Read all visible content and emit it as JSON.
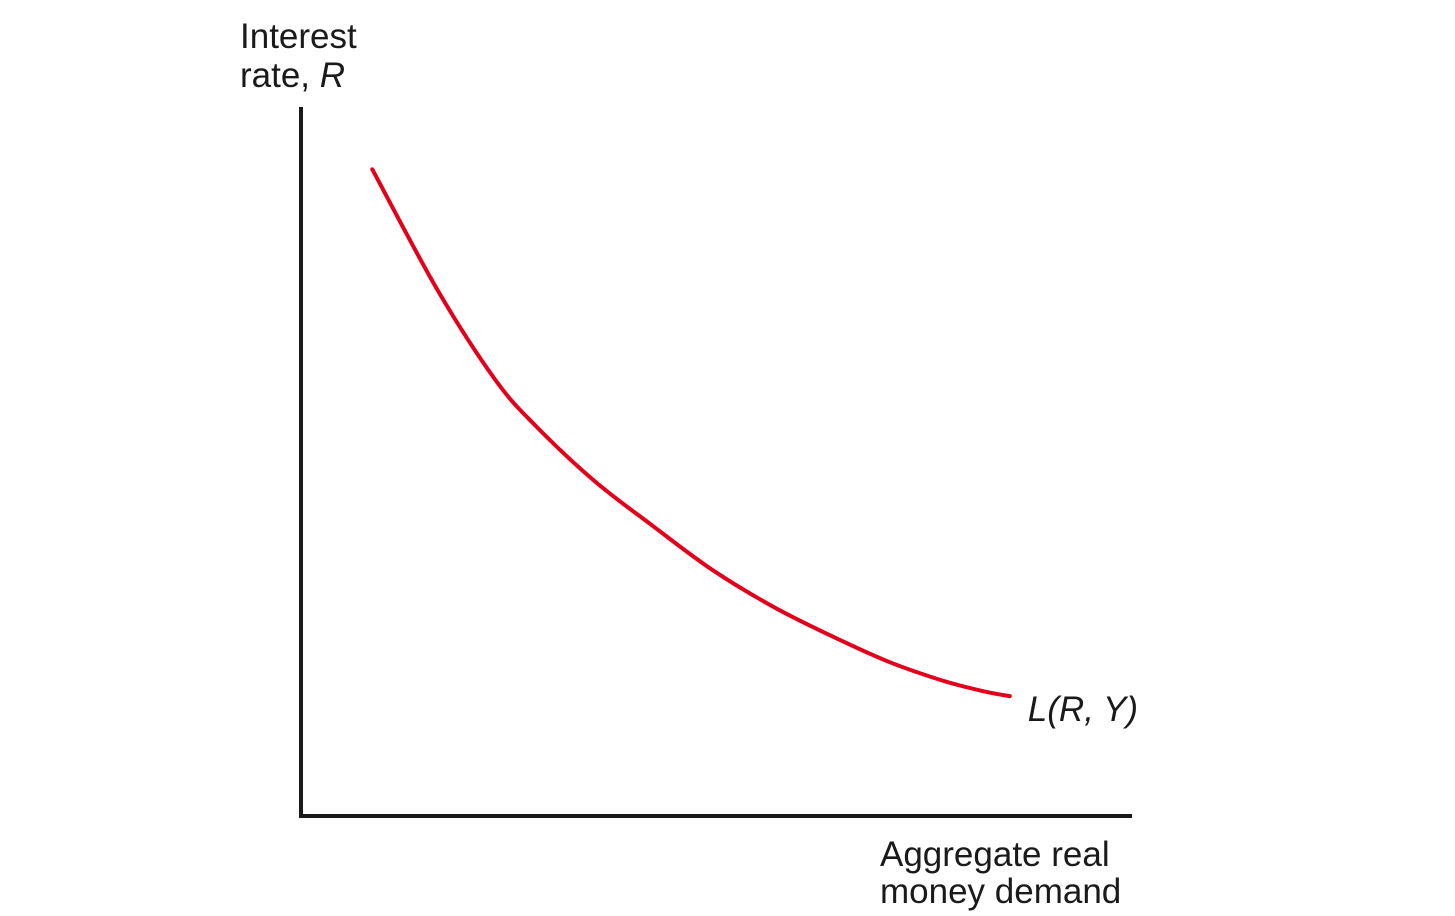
{
  "chart_data": {
    "type": "line",
    "title": "",
    "ylabel": {
      "line1": "Interest",
      "line2_prefix": "rate, ",
      "line2_var": "R"
    },
    "xlabel": {
      "line1": "Aggregate real",
      "line2": "money demand"
    },
    "ticks": {
      "x": [],
      "y": []
    },
    "grid": false,
    "xlim": [
      0,
      100
    ],
    "ylim": [
      0,
      100
    ],
    "series": [
      {
        "name": "L(R, Y)",
        "color": "#e3001b",
        "x": [
          8.6,
          16.5,
          23.5,
          28.4,
          35.4,
          42.5,
          49.6,
          56.8,
          63.8,
          70.9,
          77.4,
          82.5,
          85.5
        ],
        "y": [
          99.8,
          81.1,
          67.2,
          60.1,
          51.7,
          44.7,
          38.0,
          32.4,
          27.9,
          23.8,
          20.9,
          19.2,
          18.5
        ]
      }
    ]
  }
}
